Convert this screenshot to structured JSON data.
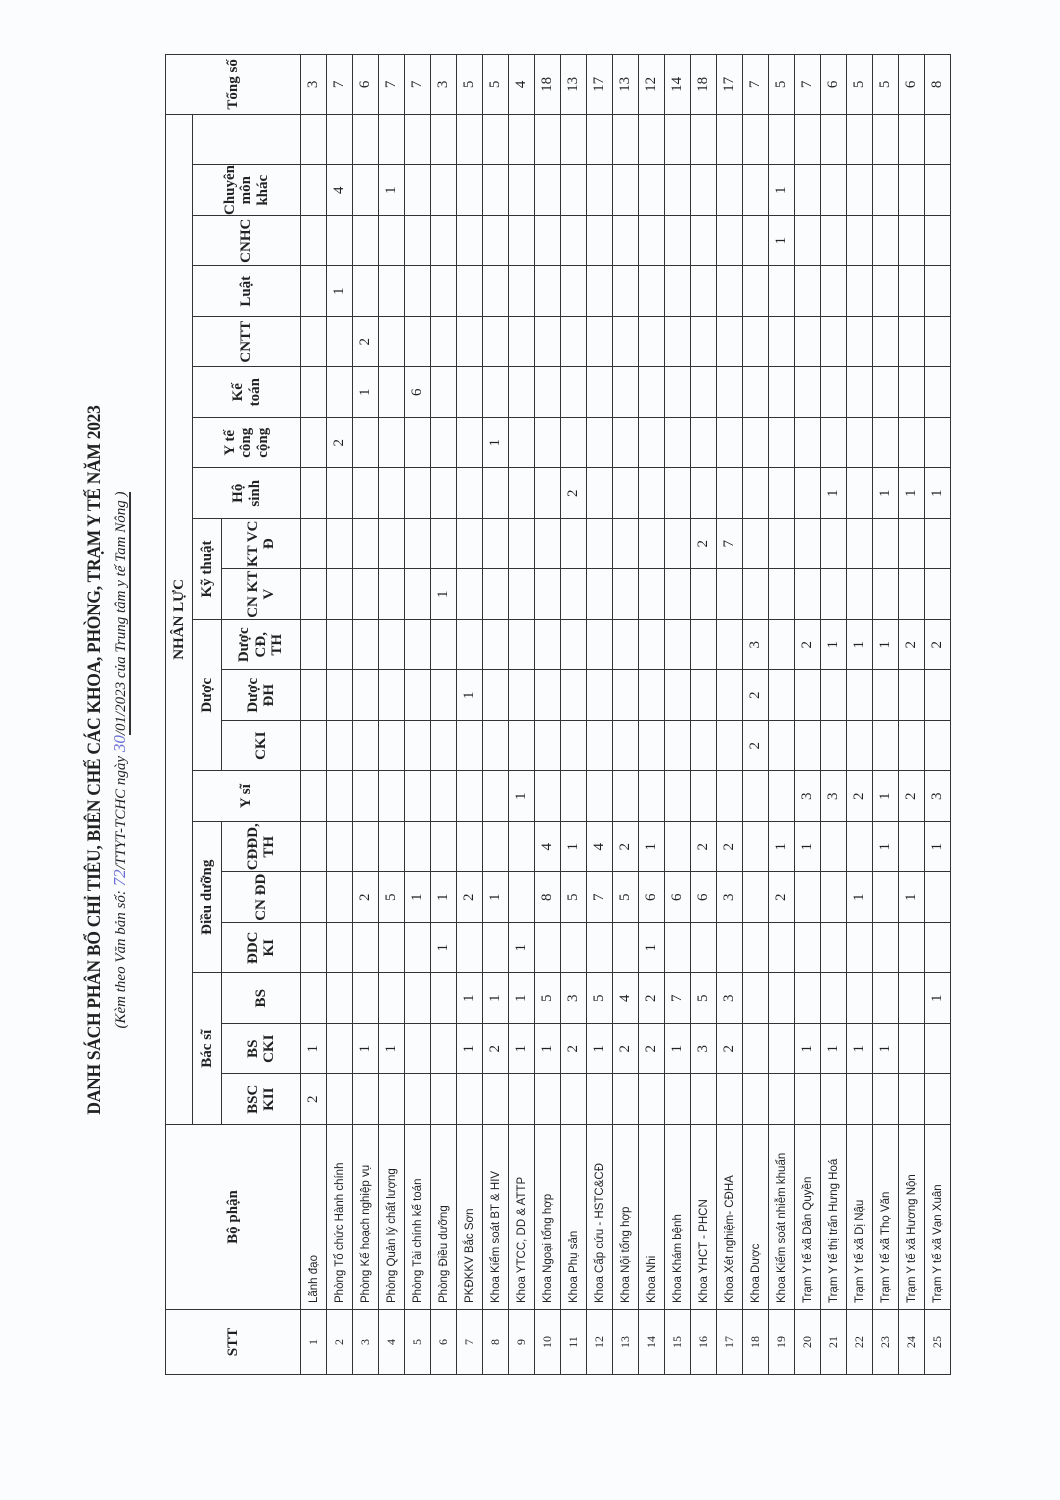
{
  "document": {
    "title": "DANH SÁCH PHÂN BỔ CHỈ TIÊU, BIÊN CHẾ CÁC KHOA, PHÒNG, TRẠM Y TẾ NĂM 2023",
    "subtitle_prefix": "(Kèm theo Văn bản số: ",
    "doc_number_handwritten": "72",
    "subtitle_mid": "/TTYT-TCHC ngày ",
    "day_handwritten": "30",
    "subtitle_suffix": "/01/2023 của Trung tâm y tế Tam Nông )"
  },
  "table": {
    "headers": {
      "stt": "STT",
      "department": "Bộ phận",
      "workforce": "NHÂN LỰC",
      "total": "Tổng số",
      "groups": {
        "doctor": "Bác sĩ",
        "nursing": "Điều dưỡng",
        "assistant_doctor": "Y sĩ",
        "pharmacy": "Dược",
        "technical": "Kỹ thuật",
        "midwife": "Hộ sinh",
        "public_health": "Y tế công cộng",
        "accounting": "Kế toán",
        "it": "CNTT",
        "law": "Luật",
        "admin": "CNHC",
        "other": "Chuyên môn khác"
      },
      "sub": {
        "bsckii": "BSC KII",
        "bscki": "BS CKI",
        "bs": "BS",
        "ddcki": "ĐDC KI",
        "cndd": "CN ĐD",
        "cdddth": "CĐĐD, TH",
        "ckI_pharm": "CKI",
        "duoc_dh": "Dược ĐH",
        "duoc_cd": "Dược CĐ, TH",
        "cnktv": "CN KT V",
        "ktvcd": "KT VC Đ"
      }
    },
    "rows": [
      {
        "stt": "1",
        "name": "Lãnh đạo",
        "values": [
          "2",
          "1",
          "",
          "",
          "",
          "",
          "",
          "",
          "",
          "",
          "",
          "",
          "",
          "",
          "",
          "",
          "",
          "",
          "",
          ""
        ],
        "total": "3"
      },
      {
        "stt": "2",
        "name": "Phòng Tổ chức Hành chính",
        "values": [
          "",
          "",
          "",
          "",
          "",
          "",
          "",
          "",
          "",
          "",
          "",
          "",
          "",
          "2",
          "",
          "",
          "1",
          "",
          "4"
        ],
        "total": "7"
      },
      {
        "stt": "3",
        "name": "Phòng Kế hoạch nghiệp vụ",
        "values": [
          "",
          "1",
          "",
          "",
          "2",
          "",
          "",
          "",
          "",
          "",
          "",
          "",
          "",
          "",
          "1",
          "2",
          "",
          "",
          ""
        ],
        "total": "6"
      },
      {
        "stt": "4",
        "name": "Phòng Quản lý chất lượng",
        "values": [
          "",
          "1",
          "",
          "",
          "5",
          "",
          "",
          "",
          "",
          "",
          "",
          "",
          "",
          "",
          "",
          "",
          "",
          "",
          "1"
        ],
        "total": "7"
      },
      {
        "stt": "5",
        "name": "Phòng Tài chính kế toán",
        "values": [
          "",
          "",
          "",
          "",
          "1",
          "",
          "",
          "",
          "",
          "",
          "",
          "",
          "",
          "",
          "6",
          "",
          "",
          "",
          ""
        ],
        "total": "7"
      },
      {
        "stt": "6",
        "name": "Phòng Điều dưỡng",
        "values": [
          "",
          "",
          "",
          "1",
          "1",
          "",
          "",
          "",
          "",
          "",
          "1",
          "",
          "",
          "",
          "",
          "",
          "",
          "",
          ""
        ],
        "total": "3"
      },
      {
        "stt": "7",
        "name": "PKĐKKV Bắc Sơn",
        "values": [
          "",
          "1",
          "1",
          "",
          "2",
          "",
          "",
          "",
          "1",
          "",
          "",
          "",
          "",
          "",
          "",
          "",
          "",
          "",
          ""
        ],
        "total": "5"
      },
      {
        "stt": "8",
        "name": "Khoa Kiểm soát BT & HIV",
        "values": [
          "",
          "2",
          "1",
          "",
          "1",
          "",
          "",
          "",
          "",
          "",
          "",
          "",
          "",
          "1",
          "",
          "",
          "",
          "",
          ""
        ],
        "total": "5"
      },
      {
        "stt": "9",
        "name": "Khoa YTCC, DD & ATTP",
        "values": [
          "",
          "1",
          "1",
          "1",
          "",
          "",
          "1",
          "",
          "",
          "",
          "",
          "",
          "",
          "",
          "",
          "",
          "",
          "",
          ""
        ],
        "total": "4"
      },
      {
        "stt": "10",
        "name": "Khoa Ngoại tổng hợp",
        "values": [
          "",
          "1",
          "5",
          "",
          "8",
          "4",
          "",
          "",
          "",
          "",
          "",
          "",
          "",
          "",
          "",
          "",
          "",
          "",
          ""
        ],
        "total": "18"
      },
      {
        "stt": "11",
        "name": "Khoa Phụ sản",
        "values": [
          "",
          "2",
          "3",
          "",
          "5",
          "1",
          "",
          "",
          "",
          "",
          "",
          "",
          "2",
          "",
          "",
          "",
          "",
          "",
          ""
        ],
        "total": "13"
      },
      {
        "stt": "12",
        "name": "Khoa Cấp cứu - HSTC&CĐ",
        "values": [
          "",
          "1",
          "5",
          "",
          "7",
          "4",
          "",
          "",
          "",
          "",
          "",
          "",
          "",
          "",
          "",
          "",
          "",
          "",
          ""
        ],
        "total": "17"
      },
      {
        "stt": "13",
        "name": "Khoa Nội tổng hợp",
        "values": [
          "",
          "2",
          "4",
          "",
          "5",
          "2",
          "",
          "",
          "",
          "",
          "",
          "",
          "",
          "",
          "",
          "",
          "",
          "",
          ""
        ],
        "total": "13"
      },
      {
        "stt": "14",
        "name": "Khoa Nhi",
        "values": [
          "",
          "2",
          "2",
          "1",
          "6",
          "1",
          "",
          "",
          "",
          "",
          "",
          "",
          "",
          "",
          "",
          "",
          "",
          "",
          ""
        ],
        "total": "12"
      },
      {
        "stt": "15",
        "name": "Khoa Khám bệnh",
        "values": [
          "",
          "1",
          "7",
          "",
          "6",
          "",
          "",
          "",
          "",
          "",
          "",
          "",
          "",
          "",
          "",
          "",
          "",
          "",
          ""
        ],
        "total": "14"
      },
      {
        "stt": "16",
        "name": "Khoa YHCT - PHCN",
        "values": [
          "",
          "3",
          "5",
          "",
          "6",
          "2",
          "",
          "",
          "",
          "",
          "",
          "2",
          "",
          "",
          "",
          "",
          "",
          "",
          ""
        ],
        "total": "18"
      },
      {
        "stt": "17",
        "name": "Khoa Xét nghiệm- CĐHA",
        "values": [
          "",
          "2",
          "3",
          "",
          "3",
          "2",
          "",
          "",
          "",
          "",
          "",
          "7",
          "",
          "",
          "",
          "",
          "",
          "",
          ""
        ],
        "total": "17"
      },
      {
        "stt": "18",
        "name": "Khoa Dược",
        "values": [
          "",
          "",
          "",
          "",
          "",
          "",
          "",
          "2",
          "2",
          "3",
          "",
          "",
          "",
          "",
          "",
          "",
          "",
          "",
          ""
        ],
        "total": "7"
      },
      {
        "stt": "19",
        "name": "Khoa Kiểm soát nhiễm khuẩn",
        "values": [
          "",
          "",
          "",
          "",
          "2",
          "1",
          "",
          "",
          "",
          "",
          "",
          "",
          "",
          "",
          "",
          "",
          "",
          "1",
          "1"
        ],
        "total": "5"
      },
      {
        "stt": "20",
        "name": "Trạm Y tế xã Dân Quyền",
        "values": [
          "",
          "1",
          "",
          "",
          "",
          "1",
          "3",
          "",
          "",
          "2",
          "",
          "",
          "",
          "",
          "",
          "",
          "",
          "",
          ""
        ],
        "total": "7"
      },
      {
        "stt": "21",
        "name": "Trạm Y tế thị trấn Hưng Hoá",
        "values": [
          "",
          "1",
          "",
          "",
          "",
          "",
          "3",
          "",
          "",
          "1",
          "",
          "",
          "1",
          "",
          "",
          "",
          "",
          "",
          ""
        ],
        "total": "6"
      },
      {
        "stt": "22",
        "name": "Trạm Y tế xã Dị Nậu",
        "values": [
          "",
          "1",
          "",
          "",
          "1",
          "",
          "2",
          "",
          "",
          "1",
          "",
          "",
          "",
          "",
          "",
          "",
          "",
          "",
          ""
        ],
        "total": "5"
      },
      {
        "stt": "23",
        "name": "Trạm Y tế xã Thọ Văn",
        "values": [
          "",
          "1",
          "",
          "",
          "",
          "1",
          "1",
          "",
          "",
          "1",
          "",
          "",
          "1",
          "",
          "",
          "",
          "",
          "",
          ""
        ],
        "total": "5"
      },
      {
        "stt": "24",
        "name": "Trạm Y tế xã Hương Nộn",
        "values": [
          "",
          "",
          "",
          "",
          "1",
          "",
          "2",
          "",
          "",
          "2",
          "",
          "",
          "1",
          "",
          "",
          "",
          "",
          "",
          ""
        ],
        "total": "6"
      },
      {
        "stt": "25",
        "name": "Trạm Y tế xã Vạn Xuân",
        "values": [
          "",
          "",
          "1",
          "",
          "",
          "1",
          "3",
          "",
          "",
          "2",
          "",
          "",
          "1",
          "",
          "",
          "",
          "",
          "",
          ""
        ],
        "total": "8"
      }
    ]
  }
}
